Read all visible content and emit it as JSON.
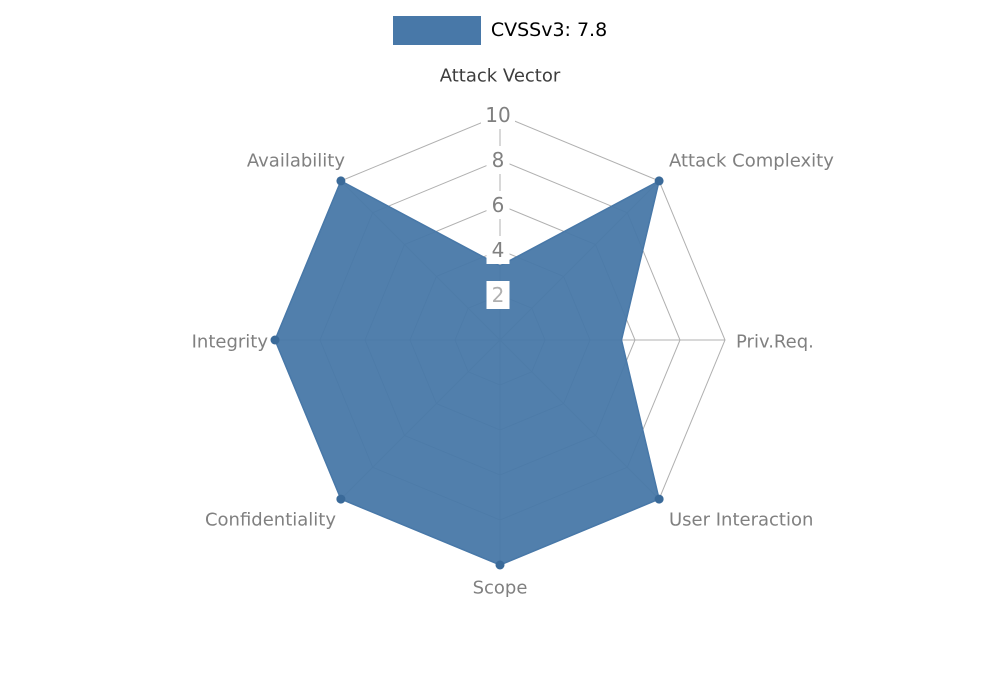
{
  "legend": {
    "label": "CVSSv3: 7.8"
  },
  "chart_data": {
    "type": "radar",
    "title": "CVSSv3: 7.8",
    "axes": [
      "Attack Vector",
      "Attack Complexity",
      "Priv.Req.",
      "User Interaction",
      "Scope",
      "Confidentiality",
      "Integrity",
      "Availability"
    ],
    "values": [
      3.3,
      10,
      5.4,
      10,
      10,
      10,
      10,
      10
    ],
    "markers": [
      false,
      true,
      false,
      true,
      true,
      true,
      true,
      true
    ],
    "scale": {
      "min": 0,
      "max": 10,
      "ticks": [
        2,
        4,
        6,
        8,
        10
      ]
    },
    "tick_labels": [
      "2",
      "4",
      "6",
      "8",
      "10"
    ],
    "grid": true,
    "legend_position": "top",
    "colors": {
      "series_fill": "#4878a8",
      "marker": "#3a6a99",
      "grid_line": "#b0b0b0",
      "tick_text": "#808080",
      "tick_text_minor": "#b0b0b0",
      "axis_label": "#808080",
      "axis_label_top": "#3d3d3d",
      "background": "#ffffff"
    }
  }
}
